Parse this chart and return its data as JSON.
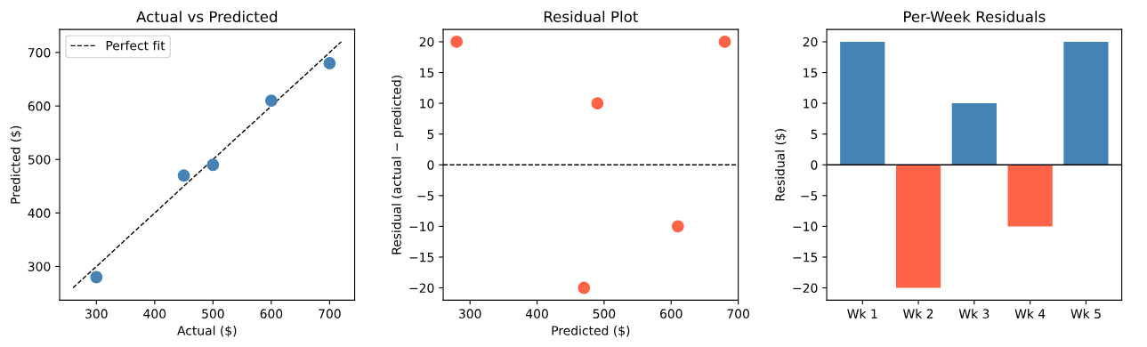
{
  "chart_data": [
    {
      "type": "scatter",
      "title": "Actual vs Predicted",
      "xlabel": "Actual ($)",
      "ylabel": "Predicted ($)",
      "xlim": [
        237,
        743
      ],
      "ylim": [
        237,
        743
      ],
      "xticks": [
        300,
        400,
        500,
        600,
        700
      ],
      "yticks": [
        300,
        400,
        500,
        600,
        700
      ],
      "grid": false,
      "legend": "top left",
      "marker": "circle",
      "series": [
        {
          "type": "scatter",
          "color": "#4682b4",
          "x": [
            300,
            450,
            500,
            600,
            700
          ],
          "values": [
            280,
            470,
            490,
            610,
            680
          ]
        },
        {
          "type": "line",
          "name": "Perfect fit",
          "color": "#000000",
          "line_style": "dashed",
          "marker": "none",
          "x": [
            260,
            720
          ],
          "values": [
            260,
            720
          ]
        }
      ]
    },
    {
      "type": "scatter",
      "title": "Residual Plot",
      "xlabel": "Predicted ($)",
      "ylabel": "Residual (actual − predicted)",
      "xlim": [
        260,
        700
      ],
      "ylim": [
        -22,
        22
      ],
      "xticks": [
        300,
        400,
        500,
        600,
        700
      ],
      "yticks": [
        -20,
        -15,
        -10,
        -5,
        0,
        5,
        10,
        15,
        20
      ],
      "grid": false,
      "marker": "circle",
      "series": [
        {
          "type": "scatter",
          "color": "#ff6347",
          "x": [
            280,
            470,
            490,
            610,
            680
          ],
          "values": [
            20,
            -20,
            10,
            -10,
            20
          ]
        }
      ],
      "ref_lines": [
        {
          "axis": "y",
          "value": 0,
          "label": null,
          "color": "#000000",
          "line_style": "dashed"
        }
      ]
    },
    {
      "type": "bar",
      "title": "Per-Week Residuals",
      "ylabel": "Residual ($)",
      "categories": [
        "Wk 1",
        "Wk 2",
        "Wk 3",
        "Wk 4",
        "Wk 5"
      ],
      "ylim": [
        -22,
        22
      ],
      "yticks": [
        -20,
        -15,
        -10,
        -5,
        0,
        5,
        10,
        15,
        20
      ],
      "grid": false,
      "values": [
        20,
        -20,
        10,
        -10,
        20
      ],
      "colors": [
        "#4682b4",
        "#ff6347",
        "#4682b4",
        "#ff6347",
        "#4682b4"
      ],
      "ref_lines": [
        {
          "axis": "y",
          "value": 0,
          "label": null,
          "color": "#000000",
          "line_style": "solid"
        }
      ]
    }
  ]
}
